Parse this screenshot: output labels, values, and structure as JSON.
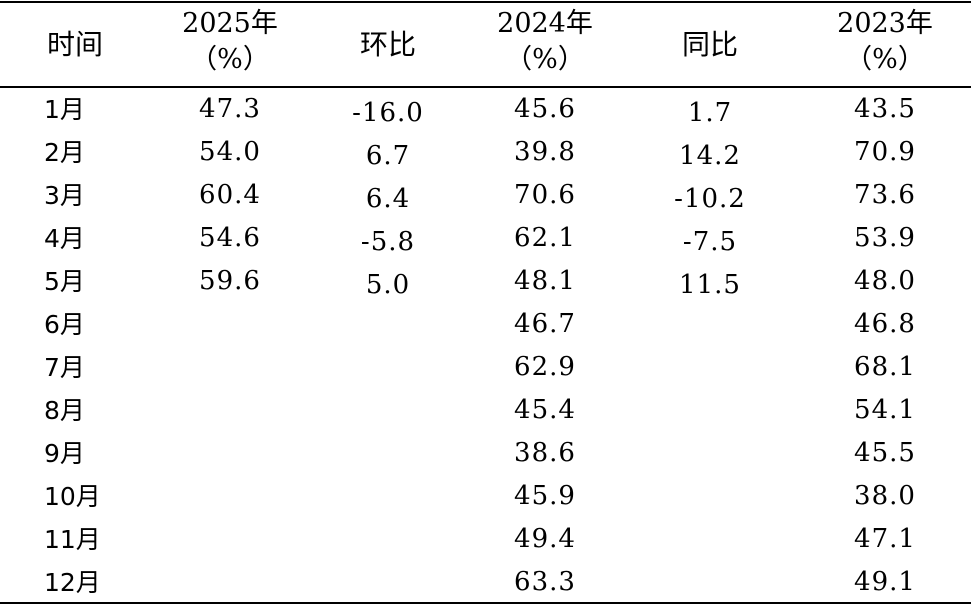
{
  "table": {
    "headers": [
      {
        "line1": "时间",
        "line2": ""
      },
      {
        "line1": "2025年",
        "line2": "（%）"
      },
      {
        "line1": "环比",
        "line2": ""
      },
      {
        "line1": "2024年",
        "line2": "（%）"
      },
      {
        "line1": "同比",
        "line2": ""
      },
      {
        "line1": "2023年",
        "line2": "（%）"
      }
    ],
    "rows": [
      [
        "1月",
        "47.3",
        "-16.0",
        "45.6",
        "1.7",
        "43.5"
      ],
      [
        "2月",
        "54.0",
        "6.7",
        "39.8",
        "14.2",
        "70.9"
      ],
      [
        "3月",
        "60.4",
        "6.4",
        "70.6",
        "-10.2",
        "73.6"
      ],
      [
        "4月",
        "54.6",
        "-5.8",
        "62.1",
        "-7.5",
        "53.9"
      ],
      [
        "5月",
        "59.6",
        "5.0",
        "48.1",
        "11.5",
        "48.0"
      ],
      [
        "6月",
        "",
        "",
        "46.7",
        "",
        "46.8"
      ],
      [
        "7月",
        "",
        "",
        "62.9",
        "",
        "68.1"
      ],
      [
        "8月",
        "",
        "",
        "45.4",
        "",
        "54.1"
      ],
      [
        "9月",
        "",
        "",
        "38.6",
        "",
        "45.5"
      ],
      [
        "10月",
        "",
        "",
        "45.9",
        "",
        "38.0"
      ],
      [
        "11月",
        "",
        "",
        "49.4",
        "",
        "47.1"
      ],
      [
        "12月",
        "",
        "",
        "63.3",
        "",
        "49.1"
      ]
    ]
  }
}
